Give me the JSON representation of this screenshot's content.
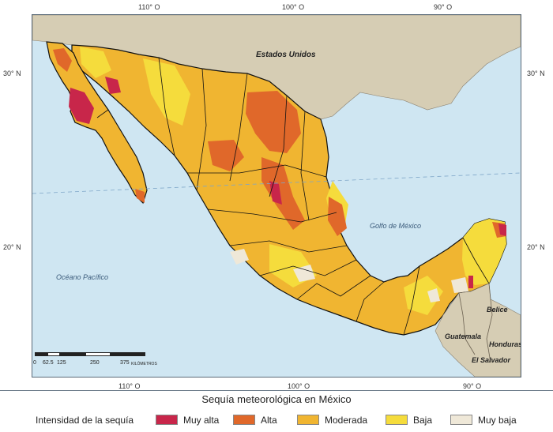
{
  "coords": {
    "top_110": "110° O",
    "top_100": "100° O",
    "top_90": "90° O",
    "bottom_110": "110° O",
    "bottom_100": "100° O",
    "bottom_90": "90° O",
    "left_30": "30° N",
    "left_20": "20° N",
    "right_30": "30° N",
    "right_20": "20° N"
  },
  "places": {
    "usa": "Estados Unidos",
    "gulf": "Golfo de México",
    "pacific": "Océano Pacífico",
    "belize": "Belice",
    "guatemala": "Guatemala",
    "honduras": "Honduras",
    "el_salvador": "El Salvador"
  },
  "scale": {
    "ticks": [
      "0",
      "62.5",
      "125",
      "250",
      "375"
    ],
    "unit": "KILÓMETROS"
  },
  "legend": {
    "title": "Sequía meteorológica en México",
    "heading": "Intensidad de la sequía",
    "items": [
      {
        "label": "Muy alta",
        "color": "#c8264a"
      },
      {
        "label": "Alta",
        "color": "#e0682a"
      },
      {
        "label": "Moderada",
        "color": "#f0b531"
      },
      {
        "label": "Baja",
        "color": "#f5dc3c"
      },
      {
        "label": "Muy baja",
        "color": "#efe8d8"
      }
    ]
  },
  "colors": {
    "sea": "#cfe6f2",
    "foreign_land": "#d6cdb4",
    "border": "#111111"
  }
}
